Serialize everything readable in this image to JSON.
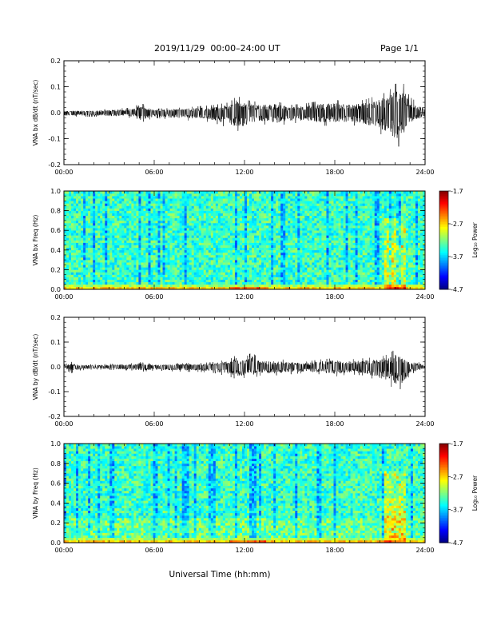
{
  "header": {
    "title": "2019/11/29  00:00–24:00 UT",
    "page": "Page 1/1"
  },
  "colors": {
    "axis": "#000000",
    "trace": "#000000",
    "background": "#ffffff"
  },
  "chart_data": [
    {
      "type": "line",
      "ylabel": "VNA bx dB/dt (nT/sec)",
      "xlim": [
        0,
        24
      ],
      "ylim": [
        -0.2,
        0.2
      ],
      "xticks": [
        "00:00",
        "06:00",
        "12:00",
        "18:00",
        "24:00"
      ],
      "yticks": [
        "-0.2",
        "-0.1",
        "0.0",
        "0.1",
        "0.2"
      ],
      "envelope": {
        "hours": [
          0,
          2,
          4.7,
          5,
          6,
          8,
          9,
          10,
          11,
          11.5,
          12,
          12.5,
          13,
          14,
          15,
          16,
          17,
          18,
          19,
          20,
          21,
          21.5,
          22,
          22.5,
          23,
          24
        ],
        "max": [
          0.01,
          0.01,
          0.02,
          0.04,
          0.015,
          0.02,
          0.025,
          0.03,
          0.04,
          0.065,
          0.05,
          0.045,
          0.04,
          0.045,
          0.03,
          0.035,
          0.045,
          0.05,
          0.04,
          0.05,
          0.07,
          0.08,
          0.11,
          0.12,
          0.06,
          0.02
        ],
        "min": [
          -0.015,
          -0.015,
          -0.02,
          -0.04,
          -0.02,
          -0.03,
          -0.03,
          -0.04,
          -0.06,
          -0.07,
          -0.07,
          -0.05,
          -0.04,
          -0.055,
          -0.04,
          -0.04,
          -0.05,
          -0.05,
          -0.045,
          -0.06,
          -0.08,
          -0.1,
          -0.13,
          -0.13,
          -0.05,
          -0.02
        ]
      }
    },
    {
      "type": "heatmap",
      "ylabel": "VNA bx Freq (Hz)",
      "xlim": [
        0,
        24
      ],
      "ylim": [
        0,
        1.0
      ],
      "xticks": [
        "00:00",
        "06:00",
        "12:00",
        "18:00",
        "24:00"
      ],
      "yticks": [
        "0.0",
        "0.2",
        "0.4",
        "0.6",
        "0.8",
        "1.0"
      ],
      "colorbar": {
        "label": "Log₁₀ Power",
        "ticks": [
          "-1.7",
          "-2.7",
          "-3.7",
          "-4.7"
        ],
        "range": [
          -4.7,
          -1.7
        ]
      },
      "features": "Background mostly -3.3 to -3.9 (blue/cyan); strong low-frequency band below 0.03 Hz (green to yellow, near 12:00 up to orange); elevated power near 21:30–22:30 extending up to about 0.7 Hz."
    },
    {
      "type": "line",
      "ylabel": "VNA by dB/dt (nT/sec)",
      "xlim": [
        0,
        24
      ],
      "ylim": [
        -0.2,
        0.2
      ],
      "xticks": [
        "00:00",
        "06:00",
        "12:00",
        "18:00",
        "24:00"
      ],
      "yticks": [
        "-0.2",
        "-0.1",
        "0.0",
        "0.1",
        "0.2"
      ],
      "envelope": {
        "hours": [
          0,
          0.5,
          1,
          2,
          4.7,
          5,
          6,
          8,
          9,
          10,
          11,
          11.5,
          12,
          12.5,
          13,
          14,
          15,
          16,
          17,
          18,
          19,
          20,
          21,
          21.5,
          22,
          22.5,
          23,
          24
        ],
        "max": [
          0.01,
          0.02,
          0.01,
          0.01,
          0.015,
          0.02,
          0.01,
          0.015,
          0.015,
          0.02,
          0.03,
          0.05,
          0.035,
          0.06,
          0.03,
          0.035,
          0.025,
          0.02,
          0.03,
          0.035,
          0.03,
          0.035,
          0.04,
          0.05,
          0.07,
          0.05,
          0.03,
          0.01
        ],
        "min": [
          -0.01,
          -0.025,
          -0.015,
          -0.01,
          -0.015,
          -0.02,
          -0.015,
          -0.02,
          -0.02,
          -0.025,
          -0.04,
          -0.05,
          -0.045,
          -0.05,
          -0.035,
          -0.035,
          -0.03,
          -0.025,
          -0.03,
          -0.04,
          -0.03,
          -0.035,
          -0.06,
          -0.07,
          -0.09,
          -0.09,
          -0.03,
          -0.01
        ]
      }
    },
    {
      "type": "heatmap",
      "ylabel": "VNA by Freq (Hz)",
      "xlim": [
        0,
        24
      ],
      "ylim": [
        0,
        1.0
      ],
      "xticks": [
        "00:00",
        "06:00",
        "12:00",
        "18:00",
        "24:00"
      ],
      "yticks": [
        "0.0",
        "0.2",
        "0.4",
        "0.6",
        "0.8",
        "1.0"
      ],
      "colorbar": {
        "label": "Log₁₀ Power",
        "ticks": [
          "-1.7",
          "-2.7",
          "-3.7",
          "-4.7"
        ],
        "range": [
          -4.7,
          -1.7
        ]
      },
      "features": "Background mostly blue/cyan, slightly brighter below 0.25 Hz; low-frequency band below 0.03 Hz green to yellow; elevated power near 21:30–22:30 up to about 0.7 Hz."
    }
  ],
  "xlabel": "Universal Time (hh:mm)"
}
